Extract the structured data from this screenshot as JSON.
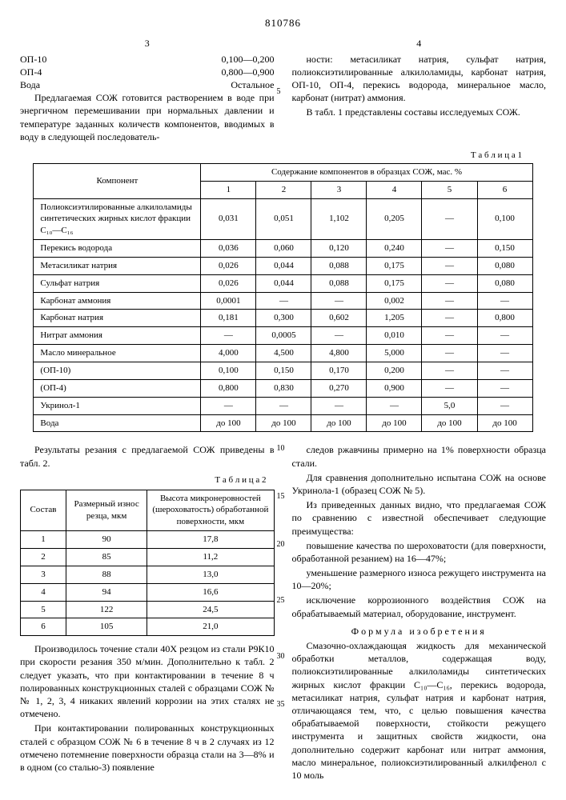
{
  "docNumber": "810786",
  "leftColNum": "3",
  "rightColNum": "4",
  "leftTop": {
    "list": [
      {
        "name": "ОП-10",
        "val": "0,100—0,200"
      },
      {
        "name": "ОП-4",
        "val": "0,800—0,900"
      },
      {
        "name": "Вода",
        "val": "Остальное"
      }
    ],
    "para": "Предлагаемая СОЖ готовится растворением в воде при энергичном перемешивании при нормальных давлении и температуре заданных количеств компонентов, вводимых в воду в следующей последователь-"
  },
  "rightTop": {
    "para1": "ности: метасиликат натрия, сульфат натрия, полиоксиэтилированные алкилоламиды, карбонат натрия, ОП-10, ОП-4, перекись водорода, минеральное масло, карбонат (нитрат) аммония.",
    "para2": "В табл. 1 представлены составы исследуемых СОЖ."
  },
  "table1": {
    "title": "Т а б л и ц а 1",
    "headerComponent": "Компонент",
    "headerGroup": "Содержание компонентов в образцах СОЖ, мас. %",
    "cols": [
      "1",
      "2",
      "3",
      "4",
      "5",
      "6"
    ],
    "rows": [
      {
        "name": "Полиоксиэтилированные алкилоламиды синтетических жирных кислот фракции С₁₀—С₁₆",
        "v": [
          "0,031",
          "0,051",
          "1,102",
          "0,205",
          "—",
          "0,100"
        ]
      },
      {
        "name": "Перекись водорода",
        "v": [
          "0,036",
          "0,060",
          "0,120",
          "0,240",
          "—",
          "0,150"
        ]
      },
      {
        "name": "Метасиликат натрия",
        "v": [
          "0,026",
          "0,044",
          "0,088",
          "0,175",
          "—",
          "0,080"
        ]
      },
      {
        "name": "Сульфат натрия",
        "v": [
          "0,026",
          "0,044",
          "0,088",
          "0,175",
          "—",
          "0,080"
        ]
      },
      {
        "name": "Карбонат аммония",
        "v": [
          "0,0001",
          "—",
          "—",
          "0,002",
          "—",
          "—"
        ]
      },
      {
        "name": "Карбонат натрия",
        "v": [
          "0,181",
          "0,300",
          "0,602",
          "1,205",
          "—",
          "0,800"
        ]
      },
      {
        "name": "Нитрат аммония",
        "v": [
          "—",
          "0,0005",
          "—",
          "0,010",
          "—",
          "—"
        ]
      },
      {
        "name": "Масло минеральное",
        "v": [
          "4,000",
          "4,500",
          "4,800",
          "5,000",
          "—",
          "—"
        ]
      },
      {
        "name": "(ОП-10)",
        "v": [
          "0,100",
          "0,150",
          "0,170",
          "0,200",
          "—",
          "—"
        ]
      },
      {
        "name": "(ОП-4)",
        "v": [
          "0,800",
          "0,830",
          "0,270",
          "0,900",
          "—",
          "—"
        ]
      },
      {
        "name": "Укринол-1",
        "v": [
          "—",
          "—",
          "—",
          "—",
          "5,0",
          "—"
        ]
      },
      {
        "name": "Вода",
        "v": [
          "до 100",
          "до 100",
          "до 100",
          "до 100",
          "до 100",
          "до 100"
        ]
      }
    ]
  },
  "leftBottom": {
    "intro": "Результаты резания с предлагаемой СОЖ приведены в табл. 2.",
    "table2title": "Т а б л и ц а 2",
    "table2": {
      "h1": "Состав",
      "h2": "Размерный износ резца, мкм",
      "h3": "Высота микронеровностей (шероховатость) обработанной поверхности, мкм",
      "rows": [
        [
          "1",
          "90",
          "17,8"
        ],
        [
          "2",
          "85",
          "11,2"
        ],
        [
          "3",
          "88",
          "13,0"
        ],
        [
          "4",
          "94",
          "16,6"
        ],
        [
          "5",
          "122",
          "24,5"
        ],
        [
          "6",
          "105",
          "21,0"
        ]
      ]
    },
    "para1": "Производилось точение стали 40Х резцом из стали Р9К10 при скорости резания 350 м/мин. Дополнительно к табл. 2 следует указать, что при контактировании в течение 8 ч полированных конструкционных сталей с образцами СОЖ №№ 1, 2, 3, 4 никаких явлений коррозии на этих сталях не отмечено.",
    "para2": "При контактировании полированных конструкционных сталей с образцом СОЖ № 6 в течение 8 ч в 2 случаях из 12 отмечено потемнение поверхности образца стали на 3—8% и в одном (со сталью-3) появление"
  },
  "rightBottom": {
    "para1": "следов ржавчины примерно на 1% поверхности образца стали.",
    "para2": "Для сравнения дополнительно испытана СОЖ на основе Укринола-1 (образец СОЖ № 5).",
    "para3": "Из приведенных данных видно, что предлагаемая СОЖ по сравнению с известной обеспечивает следующие преимущества:",
    "para4": "повышение качества по шероховатости (для поверхности, обработанной резанием) на 16—47%;",
    "para5": "уменьшение размерного износа режущего инструмента на 10—20%;",
    "para6": "исключение коррозионного воздействия СОЖ на обрабатываемый материал, оборудование, инструмент.",
    "formulaTitle": "Формула изобретения",
    "para7": "Смазочно-охлаждающая жидкость для механической обработки металлов, содержащая воду, полиоксиэтилированные алкилоламиды синтетических жирных кислот фракции С₁₀—С₁₆, перекись водорода, метасиликат натрия, сульфат натрия и карбонат натрия, отличающаяся тем, что, с целью повышения качества обрабатываемой поверхности, стойкости режущего инструмента и защитных свойств жидкости, она дополнительно содержит карбонат или нитрат аммония, масло минеральное, полиоксиэтилированный алкилфенол с 10 моль"
  },
  "marginNums": {
    "m5": "5",
    "m10": "10",
    "m15": "15",
    "m20": "20",
    "m25": "25",
    "m30": "30",
    "m35": "35"
  }
}
